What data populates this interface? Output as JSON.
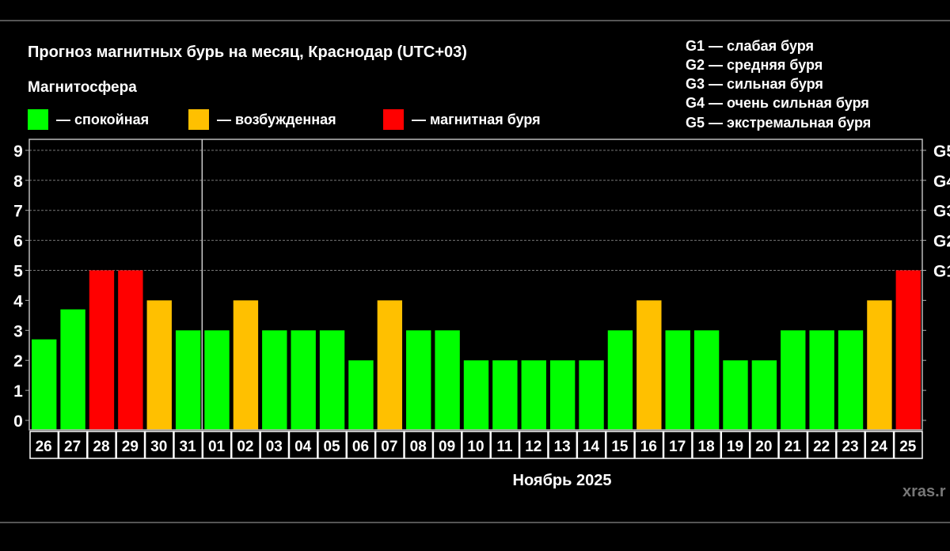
{
  "title": "Прогноз магнитных бурь на месяц, Краснодар (UTC+03)",
  "legend_title": "Магнитосфера",
  "legend": [
    {
      "label": "— спокойная",
      "color": "#00ff00"
    },
    {
      "label": "— возбужденная",
      "color": "#ffc000"
    },
    {
      "label": "— магнитная буря",
      "color": "#ff0000"
    }
  ],
  "g_scale": [
    "G1 — слабая буря",
    "G2 — средняя буря",
    "G3 — сильная буря",
    "G4 — очень сильная буря",
    "G5 — экстремальная буря"
  ],
  "watermark": "xras.r",
  "chart_data": {
    "type": "bar",
    "xlabel": "Ноябрь 2025",
    "ylim": [
      0,
      9
    ],
    "yticks": [
      0,
      1,
      2,
      3,
      4,
      5,
      6,
      7,
      8,
      9
    ],
    "right_ticks": [
      {
        "value": 5,
        "label": "G1"
      },
      {
        "value": 6,
        "label": "G2"
      },
      {
        "value": 7,
        "label": "G3"
      },
      {
        "value": 8,
        "label": "G4"
      },
      {
        "value": 9,
        "label": "G5"
      }
    ],
    "grid": "dashed horizontal above 5",
    "categories": [
      "26",
      "27",
      "28",
      "29",
      "30",
      "31",
      "01",
      "02",
      "03",
      "04",
      "05",
      "06",
      "07",
      "08",
      "09",
      "10",
      "11",
      "12",
      "13",
      "14",
      "15",
      "16",
      "17",
      "18",
      "19",
      "20",
      "21",
      "22",
      "23",
      "24",
      "25"
    ],
    "values": [
      2.7,
      3.7,
      5,
      5,
      4,
      3,
      3,
      4,
      3,
      3,
      3,
      2,
      4,
      3,
      3,
      2,
      2,
      2,
      2,
      2,
      3,
      4,
      3,
      3,
      2,
      2,
      3,
      3,
      3,
      4,
      5
    ],
    "colors": {
      "quiet": "#00ff00",
      "active": "#ffc000",
      "storm": "#ff0000"
    }
  }
}
